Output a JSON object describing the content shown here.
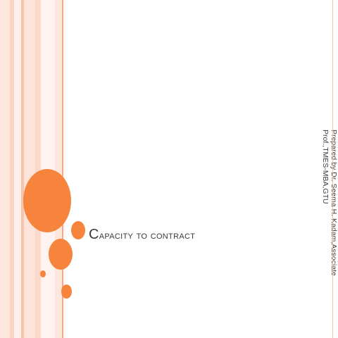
{
  "slide": {
    "title": "Capacity to contract",
    "credit_line1": "Prepared by Dr. Seema H. Kadam,Associate",
    "credit_line2": "Prof.,TMES-MBA,GTU"
  },
  "colors": {
    "accent": "#f7843d",
    "stripe": "#fde3d9",
    "text": "#3a3a3a"
  }
}
